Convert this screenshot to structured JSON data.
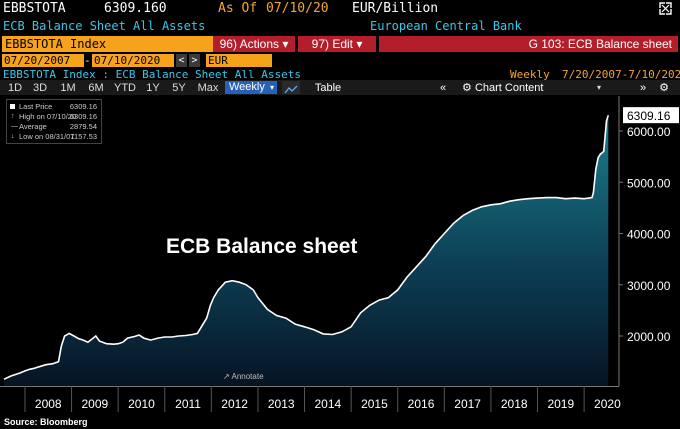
{
  "header": {
    "ticker": "EBBSTOTA",
    "value": "6309.160",
    "as_of_label": "As Of",
    "as_of_date": "07/10/20",
    "units": "EUR/Billion"
  },
  "subheader": {
    "description": "ECB Balance Sheet All Assets",
    "source_name": "European Central Bank"
  },
  "toolbar": {
    "security": "EBBSTOTA Index",
    "actions": "96) Actions ▾",
    "edit": "97) Edit ▾",
    "function": "G 103: ECB Balance sheet"
  },
  "daterow": {
    "start": "07/20/2007",
    "end": "07/10/2020",
    "currency": "EUR"
  },
  "inforow": {
    "title": "EBBSTOTA Index : ECB Balance Sheet All Assets",
    "frequency": "Weekly",
    "range": "7/20/2007-7/10/2020"
  },
  "timeframes": [
    "1D",
    "3D",
    "1M",
    "6M",
    "YTD",
    "1Y",
    "5Y",
    "Max"
  ],
  "period_select": "Weekly",
  "table_label": "Table",
  "chart_content_label": "Chart Content",
  "annotate_label": "Annotate",
  "legend": [
    {
      "label": "Last Price",
      "value": "6309.16"
    },
    {
      "label": "High on 07/10/20",
      "value": "6309.16"
    },
    {
      "label": "Average",
      "value": "2879.54"
    },
    {
      "label": "Low on 08/31/07",
      "value": "1157.53"
    }
  ],
  "source": "Source: Bloomberg",
  "colors": {
    "amber": "#f4a630",
    "cyan": "#38c8e8",
    "red_bar": "#b41e2b",
    "area_top": "#1b7f8c",
    "area_bottom": "#061423"
  },
  "chart_data": {
    "type": "area",
    "title": "ECB Balance sheet",
    "xlabel": "",
    "ylabel": "",
    "ylim": [
      1000,
      6700
    ],
    "xlim": [
      2007.55,
      2020.62
    ],
    "yticks": [
      2000,
      3000,
      4000,
      5000,
      6000
    ],
    "ytick_labels": [
      "2000.00",
      "3000.00",
      "4000.00",
      "5000.00",
      "6000.00"
    ],
    "xtick_labels": [
      "2008",
      "2009",
      "2010",
      "2011",
      "2012",
      "2013",
      "2014",
      "2015",
      "2016",
      "2017",
      "2018",
      "2019",
      "2020"
    ],
    "last_value_label": "6309.16",
    "grid": false,
    "legend": "top-left",
    "x": [
      2007.55,
      2007.7,
      2007.9,
      2008.0,
      2008.1,
      2008.2,
      2008.3,
      2008.45,
      2008.6,
      2008.72,
      2008.78,
      2008.85,
      2008.95,
      2009.05,
      2009.15,
      2009.25,
      2009.35,
      2009.45,
      2009.52,
      2009.6,
      2009.75,
      2009.9,
      2010.0,
      2010.1,
      2010.2,
      2010.35,
      2010.45,
      2010.55,
      2010.7,
      2010.85,
      2011.0,
      2011.15,
      2011.3,
      2011.45,
      2011.6,
      2011.7,
      2011.8,
      2011.9,
      2011.98,
      2012.05,
      2012.15,
      2012.3,
      2012.45,
      2012.6,
      2012.75,
      2012.9,
      2013.0,
      2013.2,
      2013.4,
      2013.6,
      2013.8,
      2014.0,
      2014.2,
      2014.4,
      2014.6,
      2014.8,
      2015.0,
      2015.2,
      2015.4,
      2015.6,
      2015.8,
      2016.0,
      2016.2,
      2016.4,
      2016.6,
      2016.8,
      2017.0,
      2017.2,
      2017.4,
      2017.6,
      2017.8,
      2018.0,
      2018.2,
      2018.4,
      2018.6,
      2018.8,
      2019.0,
      2019.2,
      2019.4,
      2019.6,
      2019.8,
      2020.0,
      2020.1,
      2020.17,
      2020.2,
      2020.25,
      2020.3,
      2020.35,
      2020.42,
      2020.48,
      2020.52
    ],
    "values": [
      1157.53,
      1220,
      1280,
      1320,
      1350,
      1370,
      1400,
      1440,
      1460,
      1500,
      1800,
      2000,
      2050,
      2000,
      1950,
      1920,
      1880,
      1950,
      2000,
      1900,
      1850,
      1840,
      1850,
      1880,
      1960,
      1990,
      2020,
      1960,
      1920,
      1960,
      1980,
      1980,
      2000,
      2010,
      2030,
      2050,
      2200,
      2350,
      2600,
      2750,
      2900,
      3050,
      3080,
      3050,
      3000,
      2900,
      2750,
      2520,
      2400,
      2350,
      2230,
      2180,
      2120,
      2040,
      2030,
      2080,
      2180,
      2450,
      2600,
      2700,
      2750,
      2900,
      3150,
      3350,
      3550,
      3800,
      4000,
      4200,
      4350,
      4450,
      4520,
      4560,
      4580,
      4630,
      4660,
      4680,
      4690,
      4700,
      4700,
      4680,
      4690,
      4680,
      4690,
      4700,
      4800,
      5250,
      5480,
      5550,
      5600,
      6200,
      6309.16
    ]
  }
}
